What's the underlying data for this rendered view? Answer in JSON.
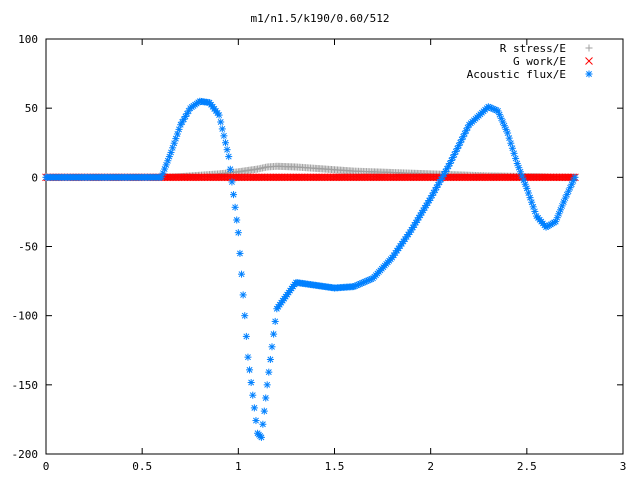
{
  "chart_data": {
    "type": "scatter",
    "title": "m1/n1.5/k190/0.60/512",
    "xlabel": "",
    "ylabel": "",
    "xlim": [
      0,
      3
    ],
    "ylim": [
      -200,
      100
    ],
    "x_ticks": [
      "0",
      "0.5",
      "1",
      "1.5",
      "2",
      "2.5",
      "3"
    ],
    "x_tick_values": [
      0,
      0.5,
      1,
      1.5,
      2,
      2.5,
      3
    ],
    "y_ticks": [
      "100",
      "50",
      "0",
      "-50",
      "-100",
      "-150",
      "-200"
    ],
    "y_tick_values": [
      100,
      50,
      0,
      -50,
      -100,
      -150,
      -200
    ],
    "grid": false,
    "legend_position": "top-right",
    "series": [
      {
        "name": "R stress/E",
        "marker": "+",
        "color": "#a0a0a0",
        "x": [
          0.0,
          0.6,
          0.7,
          0.8,
          0.9,
          1.0,
          1.1,
          1.15,
          1.2,
          1.3,
          1.4,
          1.5,
          1.6,
          1.7,
          1.8,
          1.9,
          2.0,
          2.1,
          2.2,
          2.3,
          2.4,
          2.5,
          2.6,
          2.7,
          2.75
        ],
        "y": [
          0.0,
          0.0,
          0.5,
          1.5,
          2.5,
          4.0,
          6.0,
          7.5,
          8.0,
          7.5,
          6.5,
          5.5,
          4.5,
          4.0,
          3.5,
          3.0,
          2.5,
          2.0,
          1.5,
          1.0,
          0.8,
          0.5,
          0.3,
          0.1,
          0.0
        ]
      },
      {
        "name": "G work/E",
        "marker": "x",
        "color": "#ff0000",
        "x": [
          0.0,
          0.6,
          2.75
        ],
        "y": [
          0.0,
          0.0,
          0.0
        ]
      },
      {
        "name": "Acoustic flux/E",
        "marker": "*",
        "color": "#0080ff",
        "x": [
          0.0,
          0.6,
          0.65,
          0.7,
          0.75,
          0.8,
          0.85,
          0.9,
          0.95,
          1.0,
          1.05,
          1.1,
          1.12,
          1.15,
          1.2,
          1.3,
          1.4,
          1.5,
          1.6,
          1.7,
          1.8,
          1.9,
          2.0,
          2.1,
          2.2,
          2.3,
          2.35,
          2.4,
          2.45,
          2.5,
          2.55,
          2.6,
          2.65,
          2.7,
          2.75
        ],
        "y": [
          0.0,
          0.0,
          18,
          38,
          50,
          55,
          54,
          45,
          15,
          -40,
          -130,
          -185,
          -188,
          -150,
          -95,
          -76,
          -78,
          -80,
          -79,
          -73,
          -58,
          -38,
          -15,
          10,
          38,
          51,
          48,
          32,
          10,
          -8,
          -28,
          -36,
          -32,
          -15,
          0
        ]
      }
    ]
  }
}
